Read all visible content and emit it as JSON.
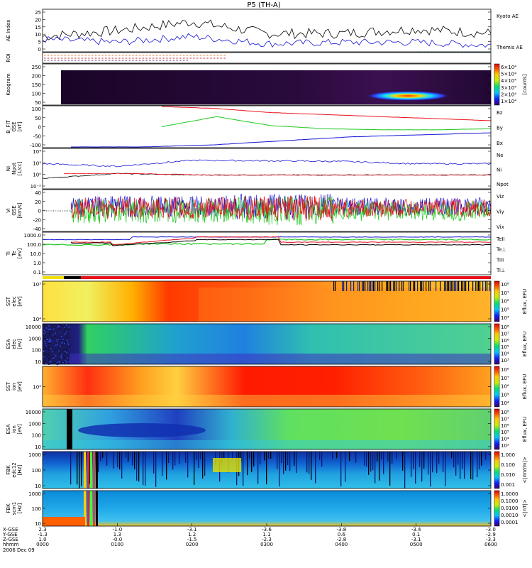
{
  "title": "P5 (TH-A)",
  "colors": {
    "red": "#e8101a",
    "green": "#1ec81e",
    "blue": "#1414d2",
    "black": "#000000",
    "cyan": "#00b4e6"
  },
  "panels": {
    "ae": {
      "ylabel": "AE Index",
      "ticks": [
        "25",
        "20",
        "15",
        "10",
        "5",
        "0"
      ],
      "legend": [
        "Kyoto AE",
        "Themis AE"
      ]
    },
    "roi": {
      "ylabel": "ROI"
    },
    "keogram": {
      "ylabel": "Keogram",
      "ticks": [
        "250",
        "200",
        "150",
        "100",
        "50"
      ],
      "cbar": [
        "6×10⁴",
        "5×10⁴",
        "4×10⁴",
        "3×10⁴",
        "2×10⁴",
        "1×10⁴"
      ],
      "cbar_label": "[counts]"
    },
    "bfield": {
      "ylabel": [
        "B_FIT",
        "GSE",
        "[nT]"
      ],
      "ticks": [
        "100",
        "50",
        "0",
        "-50",
        "-100"
      ],
      "legend": [
        "Bz",
        "By",
        "Bx"
      ]
    },
    "density": {
      "ylabel": [
        "Ni",
        "Npot",
        "[1/cc]"
      ],
      "ticks": [
        "10⁴",
        "10²",
        "10⁰",
        "10⁻²"
      ],
      "legend": [
        "Ne",
        "Ni",
        "Npot"
      ]
    },
    "velocity": {
      "ylabel": [
        "Vi",
        "GSE",
        "[km/s]"
      ],
      "ticks": [
        "40",
        "20",
        "0",
        "-20",
        "-40"
      ],
      "legend": [
        "Viz",
        "Viy",
        "Vix"
      ]
    },
    "temp": {
      "ylabel": [
        "Ti",
        "Te",
        "[eV]"
      ],
      "ticks": [
        "1000.0",
        "100.0",
        "10.0",
        "1.0",
        "0.1"
      ],
      "legend": [
        "TeII",
        "Te⊥",
        "TiII",
        "Ti⊥"
      ]
    },
    "sst_e": {
      "ylabel": [
        "SST",
        "elec",
        "[eV]"
      ],
      "ticks": [
        "10⁵",
        "10⁴"
      ],
      "cbar": [
        "10⁸",
        "10⁷",
        "10⁶",
        "10⁵",
        "10⁴"
      ],
      "cbar_label": "Eflux, EFU"
    },
    "esa_e": {
      "ylabel": [
        "ESA",
        "elec",
        "[eV]"
      ],
      "ticks": [
        "10000",
        "1000",
        "100",
        "10"
      ],
      "cbar": [
        "10⁸",
        "10⁷",
        "10⁶",
        "10⁵",
        "10⁴",
        "10³"
      ],
      "cbar_label": "Eflux, EFU"
    },
    "sst_i": {
      "ylabel": [
        "SST",
        "ion",
        "[eV]"
      ],
      "ticks": [
        "10⁵"
      ],
      "cbar": [
        "10⁸",
        "10⁷",
        "10⁶",
        "10⁵",
        "10⁴"
      ],
      "cbar_label": "Eflux, EFU"
    },
    "esa_i": {
      "ylabel": [
        "ESA",
        "ion",
        "[eV]"
      ],
      "ticks": [
        "10000",
        "1000",
        "100",
        "10"
      ],
      "cbar": [
        "10⁸",
        "10⁷",
        "10⁶",
        "10⁵",
        "10⁴",
        "10³"
      ],
      "cbar_label": "Eflux, EFU"
    },
    "fbk1": {
      "ylabel": [
        "FBK",
        "edc12",
        "[Hz]"
      ],
      "ticks": [
        "1000",
        "100",
        "10"
      ],
      "cbar": [
        "1.000",
        "0.100",
        "0.010",
        "0.001"
      ],
      "cbar_label": "<|mV/m|>"
    },
    "fbk2": {
      "ylabel": [
        "FBK",
        "scm1",
        "[Hz]"
      ],
      "ticks": [
        "1000",
        "100",
        "10"
      ],
      "cbar": [
        "1.0000",
        "0.1000",
        "0.0100",
        "0.0010",
        "0.0001"
      ],
      "cbar_label": "<|nT|>"
    }
  },
  "xaxis": {
    "row_labels": [
      "X-GSE",
      "Y-GSE",
      "Z-GSE",
      "hhmm",
      "2006 Dec 09"
    ],
    "columns": [
      [
        "2.3",
        "-1.3",
        "1.0",
        "0000"
      ],
      [
        "-1.0",
        "1.3",
        "-0.0",
        "0100"
      ],
      [
        "-3.1",
        "1.2",
        "-1.5",
        "0200"
      ],
      [
        "-3.6",
        "1.1",
        "-2.3",
        "0300"
      ],
      [
        "-3.8",
        "0.6",
        "-2.8",
        "0400"
      ],
      [
        "-3.4",
        "0.1",
        "-3.1",
        "0500"
      ],
      [
        "-3.0",
        "-2.9",
        "-3.3",
        "0600"
      ]
    ]
  },
  "chart_data": [
    {
      "type": "line",
      "title": "P5 (TH-A)",
      "ylabel": "AE Index",
      "ylim": [
        0,
        28
      ],
      "x": [
        "0000",
        "0100",
        "0200",
        "0300",
        "0400",
        "0500",
        "0600"
      ],
      "series": [
        {
          "name": "Kyoto AE",
          "values": [
            10,
            14,
            20,
            12,
            12,
            15,
            12
          ]
        },
        {
          "name": "Themis AE",
          "values": [
            8,
            6,
            10,
            5,
            6,
            6,
            4
          ]
        }
      ]
    },
    {
      "type": "heatmap",
      "ylabel": "Keogram",
      "ylim": [
        0,
        260
      ]
    },
    {
      "type": "line",
      "ylabel": "B_FIT GSE [nT]",
      "ylim": [
        -100,
        100
      ],
      "x": [
        "0030",
        "0100",
        "0200",
        "0300",
        "0400",
        "0500",
        "0600"
      ],
      "series": [
        {
          "name": "Bz",
          "values": [
            100,
            90,
            70,
            60,
            50,
            40,
            30
          ]
        },
        {
          "name": "By",
          "values": [
            0,
            50,
            5,
            -10,
            -15,
            -15,
            -10
          ]
        },
        {
          "name": "Bx",
          "values": [
            -100,
            -100,
            -90,
            -70,
            -50,
            -40,
            -30
          ]
        }
      ]
    },
    {
      "type": "line",
      "ylabel": "Ni Npot [1/cc]",
      "yscale": "log",
      "series": [
        {
          "name": "Ne",
          "values": [
            1,
            1,
            0.5,
            0.5,
            0.5,
            0.5,
            0.5
          ]
        },
        {
          "name": "Ni",
          "values": [
            100,
            30,
            500,
            400,
            300,
            100,
            100
          ]
        },
        {
          "name": "Npot",
          "values": [
            0.1,
            1,
            0.5,
            0.5,
            0.5,
            0.5,
            0.5
          ]
        }
      ]
    },
    {
      "type": "line",
      "ylabel": "Vi GSE [km/s]",
      "ylim": [
        -50,
        50
      ],
      "series": [
        {
          "name": "Viz"
        },
        {
          "name": "Viy"
        },
        {
          "name": "Vix"
        }
      ]
    },
    {
      "type": "line",
      "ylabel": "Ti Te [eV]",
      "yscale": "log",
      "ylim": [
        0.05,
        3000
      ],
      "series": [
        {
          "name": "TeII"
        },
        {
          "name": "Te⊥"
        },
        {
          "name": "TiII"
        },
        {
          "name": "Ti⊥"
        }
      ]
    },
    {
      "type": "heatmap",
      "ylabel": "SST elec [eV]"
    },
    {
      "type": "heatmap",
      "ylabel": "ESA elec [eV]"
    },
    {
      "type": "heatmap",
      "ylabel": "SST ion [eV]"
    },
    {
      "type": "heatmap",
      "ylabel": "ESA ion [eV]"
    },
    {
      "type": "heatmap",
      "ylabel": "FBK edc12 [Hz]"
    },
    {
      "type": "heatmap",
      "ylabel": "FBK scm1 [Hz]"
    }
  ]
}
